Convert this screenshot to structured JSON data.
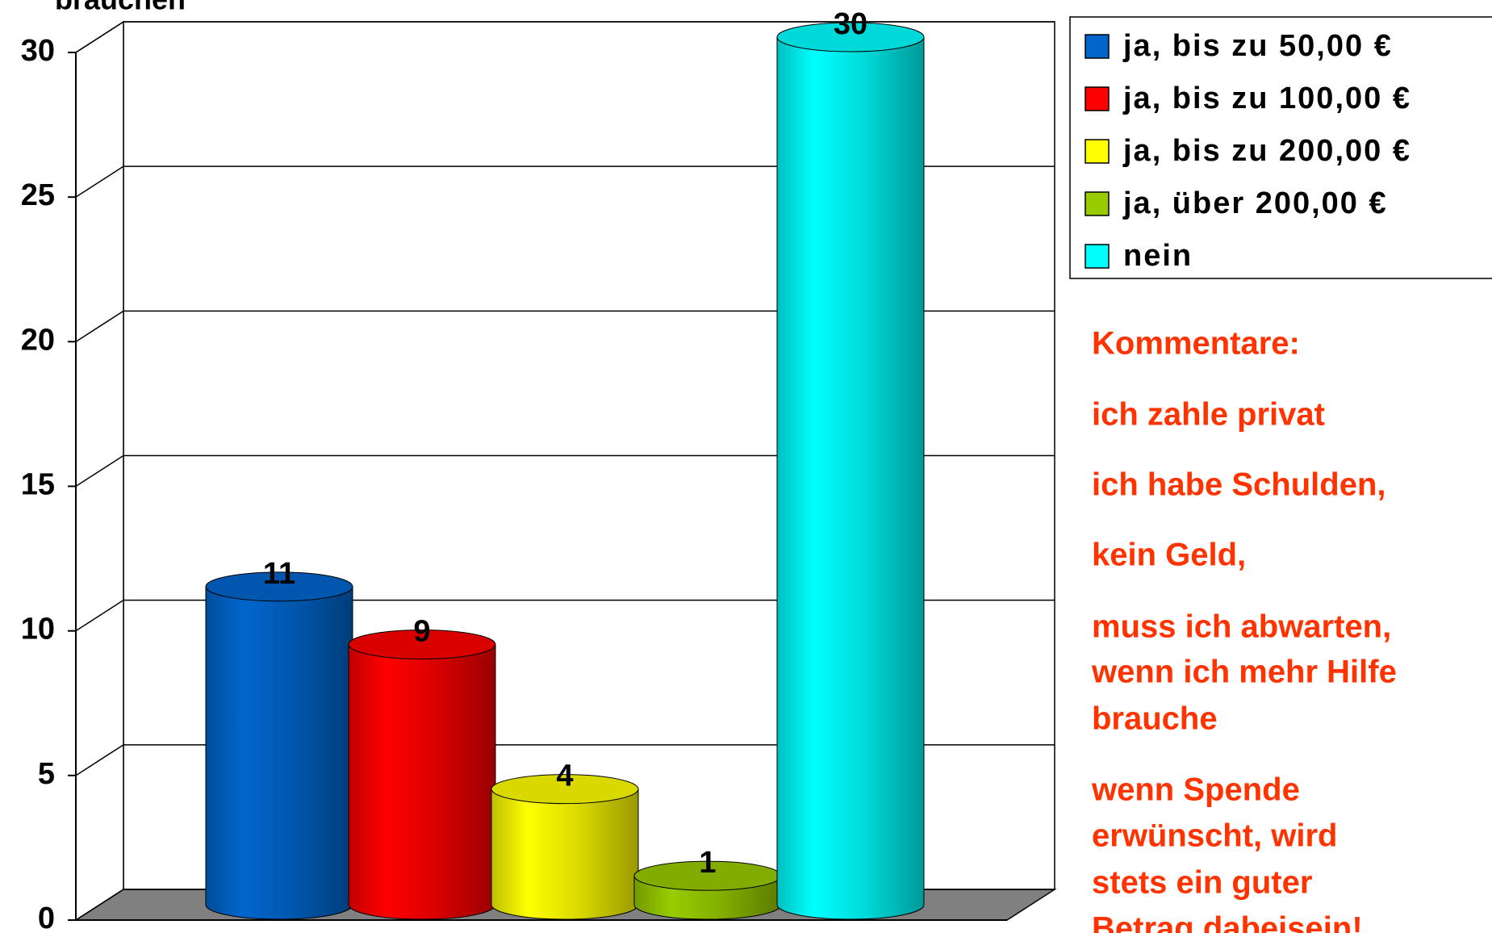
{
  "chart_data": {
    "type": "bar3d",
    "title": "brauchen",
    "series": [
      {
        "name": "ja, bis zu 50,00 €",
        "color": "#0066cc",
        "values": [
          11
        ]
      },
      {
        "name": "ja, bis zu 100,00 €",
        "color": "#ff0000",
        "values": [
          9
        ]
      },
      {
        "name": "ja, bis zu 200,00 €",
        "color": "#ffff00",
        "values": [
          4
        ]
      },
      {
        "name": "ja, über 200,00 €",
        "color": "#99cc00",
        "values": [
          1
        ]
      },
      {
        "name": "nein",
        "color": "#00ffff",
        "values": [
          30
        ]
      }
    ],
    "ylim": [
      0,
      30
    ],
    "yticks": [
      0,
      5,
      10,
      15,
      20,
      25,
      30
    ],
    "grid": true,
    "legend": "top-right",
    "annotations": [
      "Kommentare:",
      "ich zahle privat",
      "ich habe Schulden,",
      "kein Geld,",
      "muss ich abwarten,",
      "wenn ich mehr Hilfe",
      "brauche",
      "wenn Spende",
      "erwünscht, wird",
      "stets ein guter",
      "Betrag dabeisein!"
    ],
    "annotation_color": "#ff3300"
  }
}
